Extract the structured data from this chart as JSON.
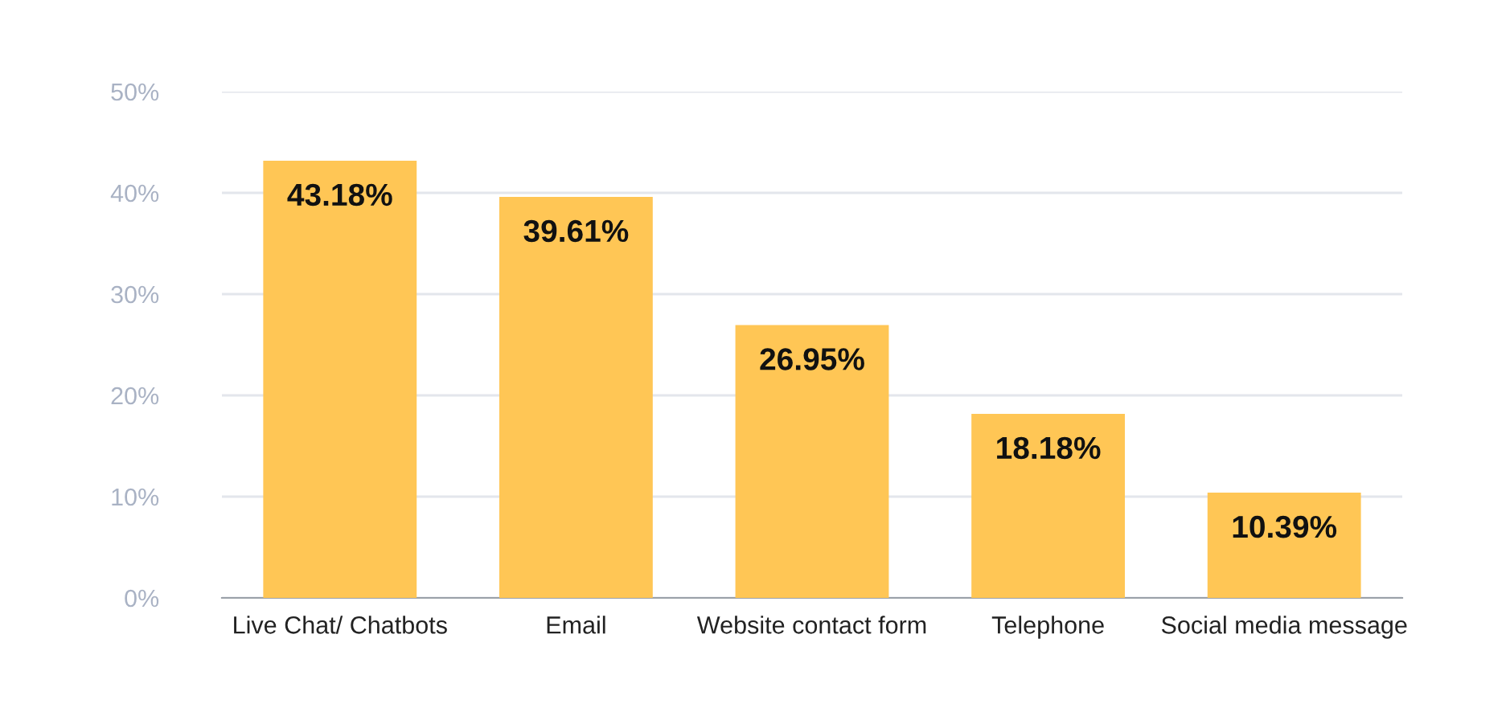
{
  "chart_data": {
    "type": "bar",
    "categories": [
      "Live Chat/ Chatbots",
      "Email",
      "Website contact form",
      "Telephone",
      "Social media message"
    ],
    "values": [
      43.18,
      39.61,
      26.95,
      18.18,
      10.39
    ],
    "value_labels": [
      "43.18%",
      "39.61%",
      "26.95%",
      "18.18%",
      "10.39%"
    ],
    "color": "#ffc655",
    "ylim": [
      0,
      50
    ],
    "yticks": [
      {
        "value": 0,
        "label": "0%"
      },
      {
        "value": 10,
        "label": "10%"
      },
      {
        "value": 20,
        "label": "20%"
      },
      {
        "value": 30,
        "label": "30%"
      },
      {
        "value": 40,
        "label": "40%"
      },
      {
        "value": 50,
        "label": "50%"
      }
    ],
    "grid": "y"
  }
}
